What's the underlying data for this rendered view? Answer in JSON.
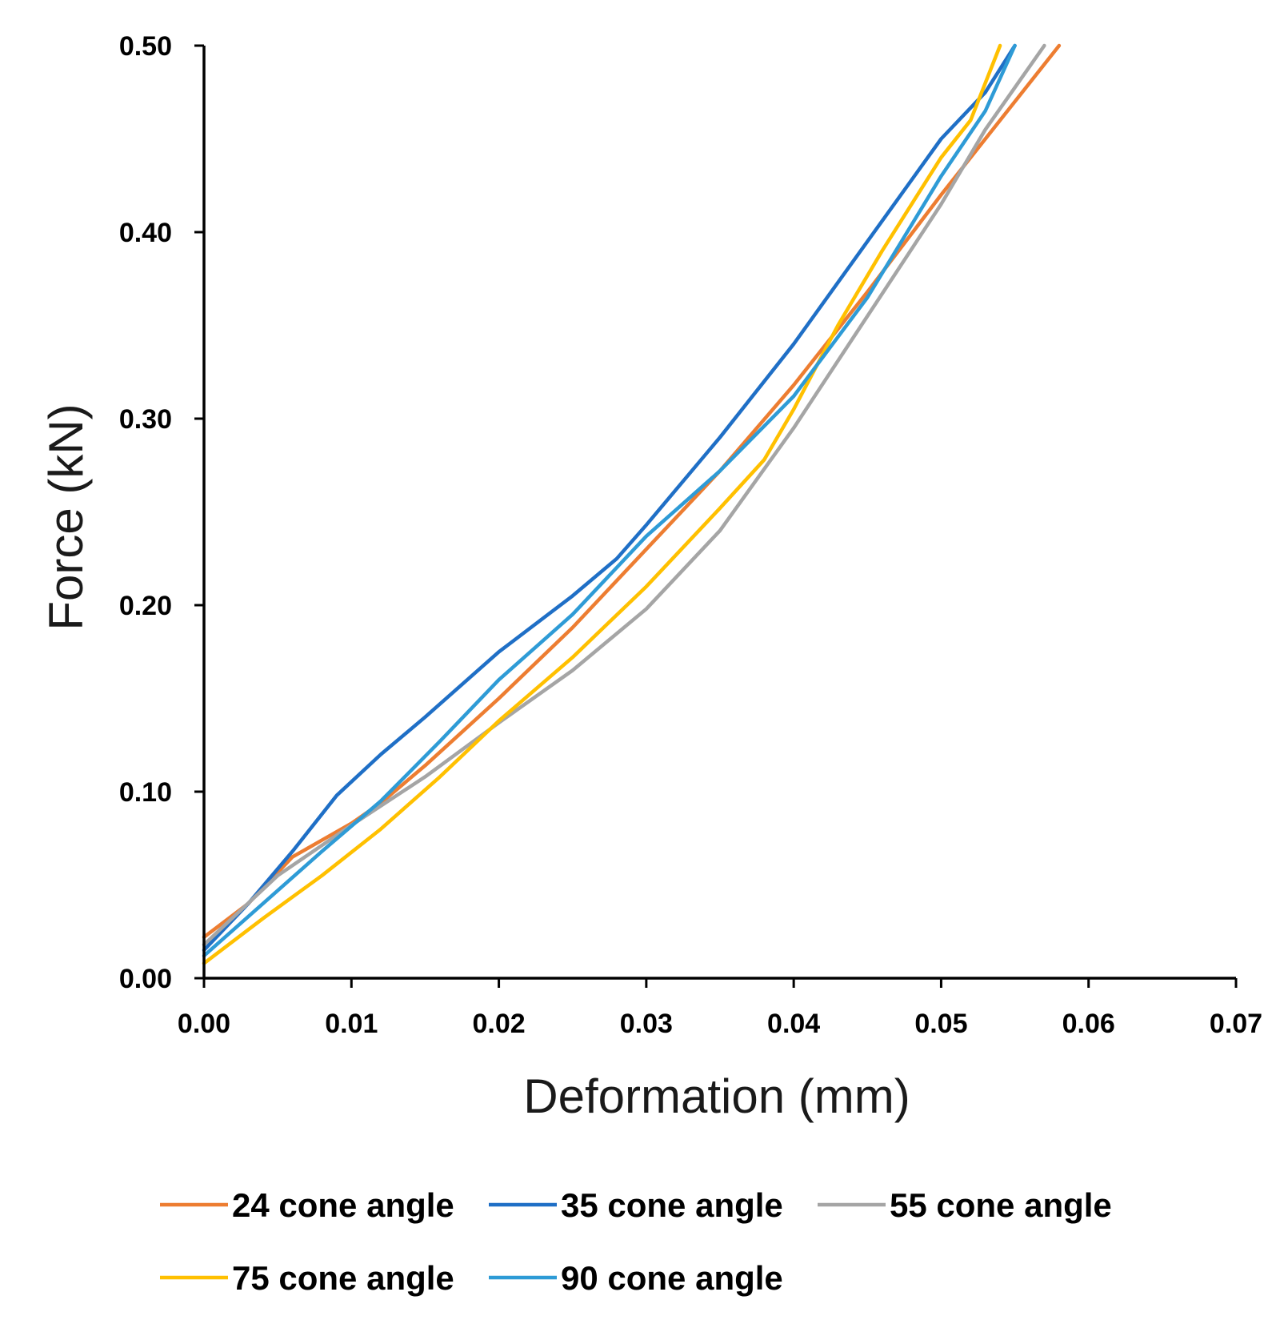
{
  "chart_data": {
    "type": "line",
    "title": "",
    "xlabel": "Deformation (mm)",
    "ylabel": "Force (kN)",
    "xlim": [
      0,
      0.07
    ],
    "ylim": [
      0,
      0.5
    ],
    "grid": false,
    "legend_position": "bottom",
    "x_ticks": [
      {
        "value": 0.0,
        "label": "0.00"
      },
      {
        "value": 0.01,
        "label": "0.01"
      },
      {
        "value": 0.02,
        "label": "0.02"
      },
      {
        "value": 0.03,
        "label": "0.03"
      },
      {
        "value": 0.04,
        "label": "0.04"
      },
      {
        "value": 0.05,
        "label": "0.05"
      },
      {
        "value": 0.06,
        "label": "0.06"
      },
      {
        "value": 0.07,
        "label": "0.07"
      }
    ],
    "y_ticks": [
      {
        "value": 0.0,
        "label": "0.00"
      },
      {
        "value": 0.1,
        "label": "0.10"
      },
      {
        "value": 0.2,
        "label": "0.20"
      },
      {
        "value": 0.3,
        "label": "0.30"
      },
      {
        "value": 0.4,
        "label": "0.40"
      },
      {
        "value": 0.5,
        "label": "0.50"
      }
    ],
    "series": [
      {
        "name": "24 cone angle",
        "color": "#ED7D31",
        "points": [
          [
            0,
            0.022
          ],
          [
            0.003,
            0.04
          ],
          [
            0.006,
            0.065
          ],
          [
            0.008,
            0.074
          ],
          [
            0.01,
            0.083
          ],
          [
            0.012,
            0.094
          ],
          [
            0.015,
            0.114
          ],
          [
            0.02,
            0.15
          ],
          [
            0.025,
            0.188
          ],
          [
            0.03,
            0.23
          ],
          [
            0.035,
            0.272
          ],
          [
            0.04,
            0.318
          ],
          [
            0.045,
            0.368
          ],
          [
            0.05,
            0.42
          ],
          [
            0.055,
            0.47
          ],
          [
            0.058,
            0.5
          ]
        ]
      },
      {
        "name": "35 cone angle",
        "color": "#1F6FC6",
        "points": [
          [
            0,
            0.015
          ],
          [
            0.003,
            0.04
          ],
          [
            0.006,
            0.068
          ],
          [
            0.009,
            0.098
          ],
          [
            0.012,
            0.12
          ],
          [
            0.015,
            0.14
          ],
          [
            0.02,
            0.175
          ],
          [
            0.025,
            0.205
          ],
          [
            0.028,
            0.225
          ],
          [
            0.03,
            0.243
          ],
          [
            0.035,
            0.29
          ],
          [
            0.04,
            0.34
          ],
          [
            0.045,
            0.395
          ],
          [
            0.05,
            0.45
          ],
          [
            0.053,
            0.475
          ],
          [
            0.055,
            0.5
          ]
        ]
      },
      {
        "name": "55 cone angle",
        "color": "#A5A5A5",
        "points": [
          [
            0,
            0.018
          ],
          [
            0.005,
            0.055
          ],
          [
            0.01,
            0.082
          ],
          [
            0.015,
            0.108
          ],
          [
            0.02,
            0.137
          ],
          [
            0.025,
            0.165
          ],
          [
            0.03,
            0.198
          ],
          [
            0.035,
            0.24
          ],
          [
            0.04,
            0.295
          ],
          [
            0.045,
            0.355
          ],
          [
            0.05,
            0.415
          ],
          [
            0.053,
            0.455
          ],
          [
            0.057,
            0.5
          ]
        ]
      },
      {
        "name": "75 cone angle",
        "color": "#FFC000",
        "points": [
          [
            0,
            0.008
          ],
          [
            0.004,
            0.032
          ],
          [
            0.008,
            0.055
          ],
          [
            0.012,
            0.08
          ],
          [
            0.016,
            0.108
          ],
          [
            0.02,
            0.138
          ],
          [
            0.025,
            0.172
          ],
          [
            0.03,
            0.21
          ],
          [
            0.035,
            0.252
          ],
          [
            0.038,
            0.278
          ],
          [
            0.04,
            0.305
          ],
          [
            0.043,
            0.35
          ],
          [
            0.046,
            0.39
          ],
          [
            0.05,
            0.44
          ],
          [
            0.052,
            0.46
          ],
          [
            0.054,
            0.5
          ]
        ]
      },
      {
        "name": "90 cone angle",
        "color": "#2E9BD6",
        "points": [
          [
            0,
            0.012
          ],
          [
            0.004,
            0.04
          ],
          [
            0.008,
            0.068
          ],
          [
            0.012,
            0.095
          ],
          [
            0.016,
            0.127
          ],
          [
            0.02,
            0.16
          ],
          [
            0.025,
            0.195
          ],
          [
            0.03,
            0.237
          ],
          [
            0.035,
            0.272
          ],
          [
            0.04,
            0.312
          ],
          [
            0.045,
            0.365
          ],
          [
            0.05,
            0.43
          ],
          [
            0.053,
            0.465
          ],
          [
            0.055,
            0.5
          ]
        ]
      }
    ]
  }
}
